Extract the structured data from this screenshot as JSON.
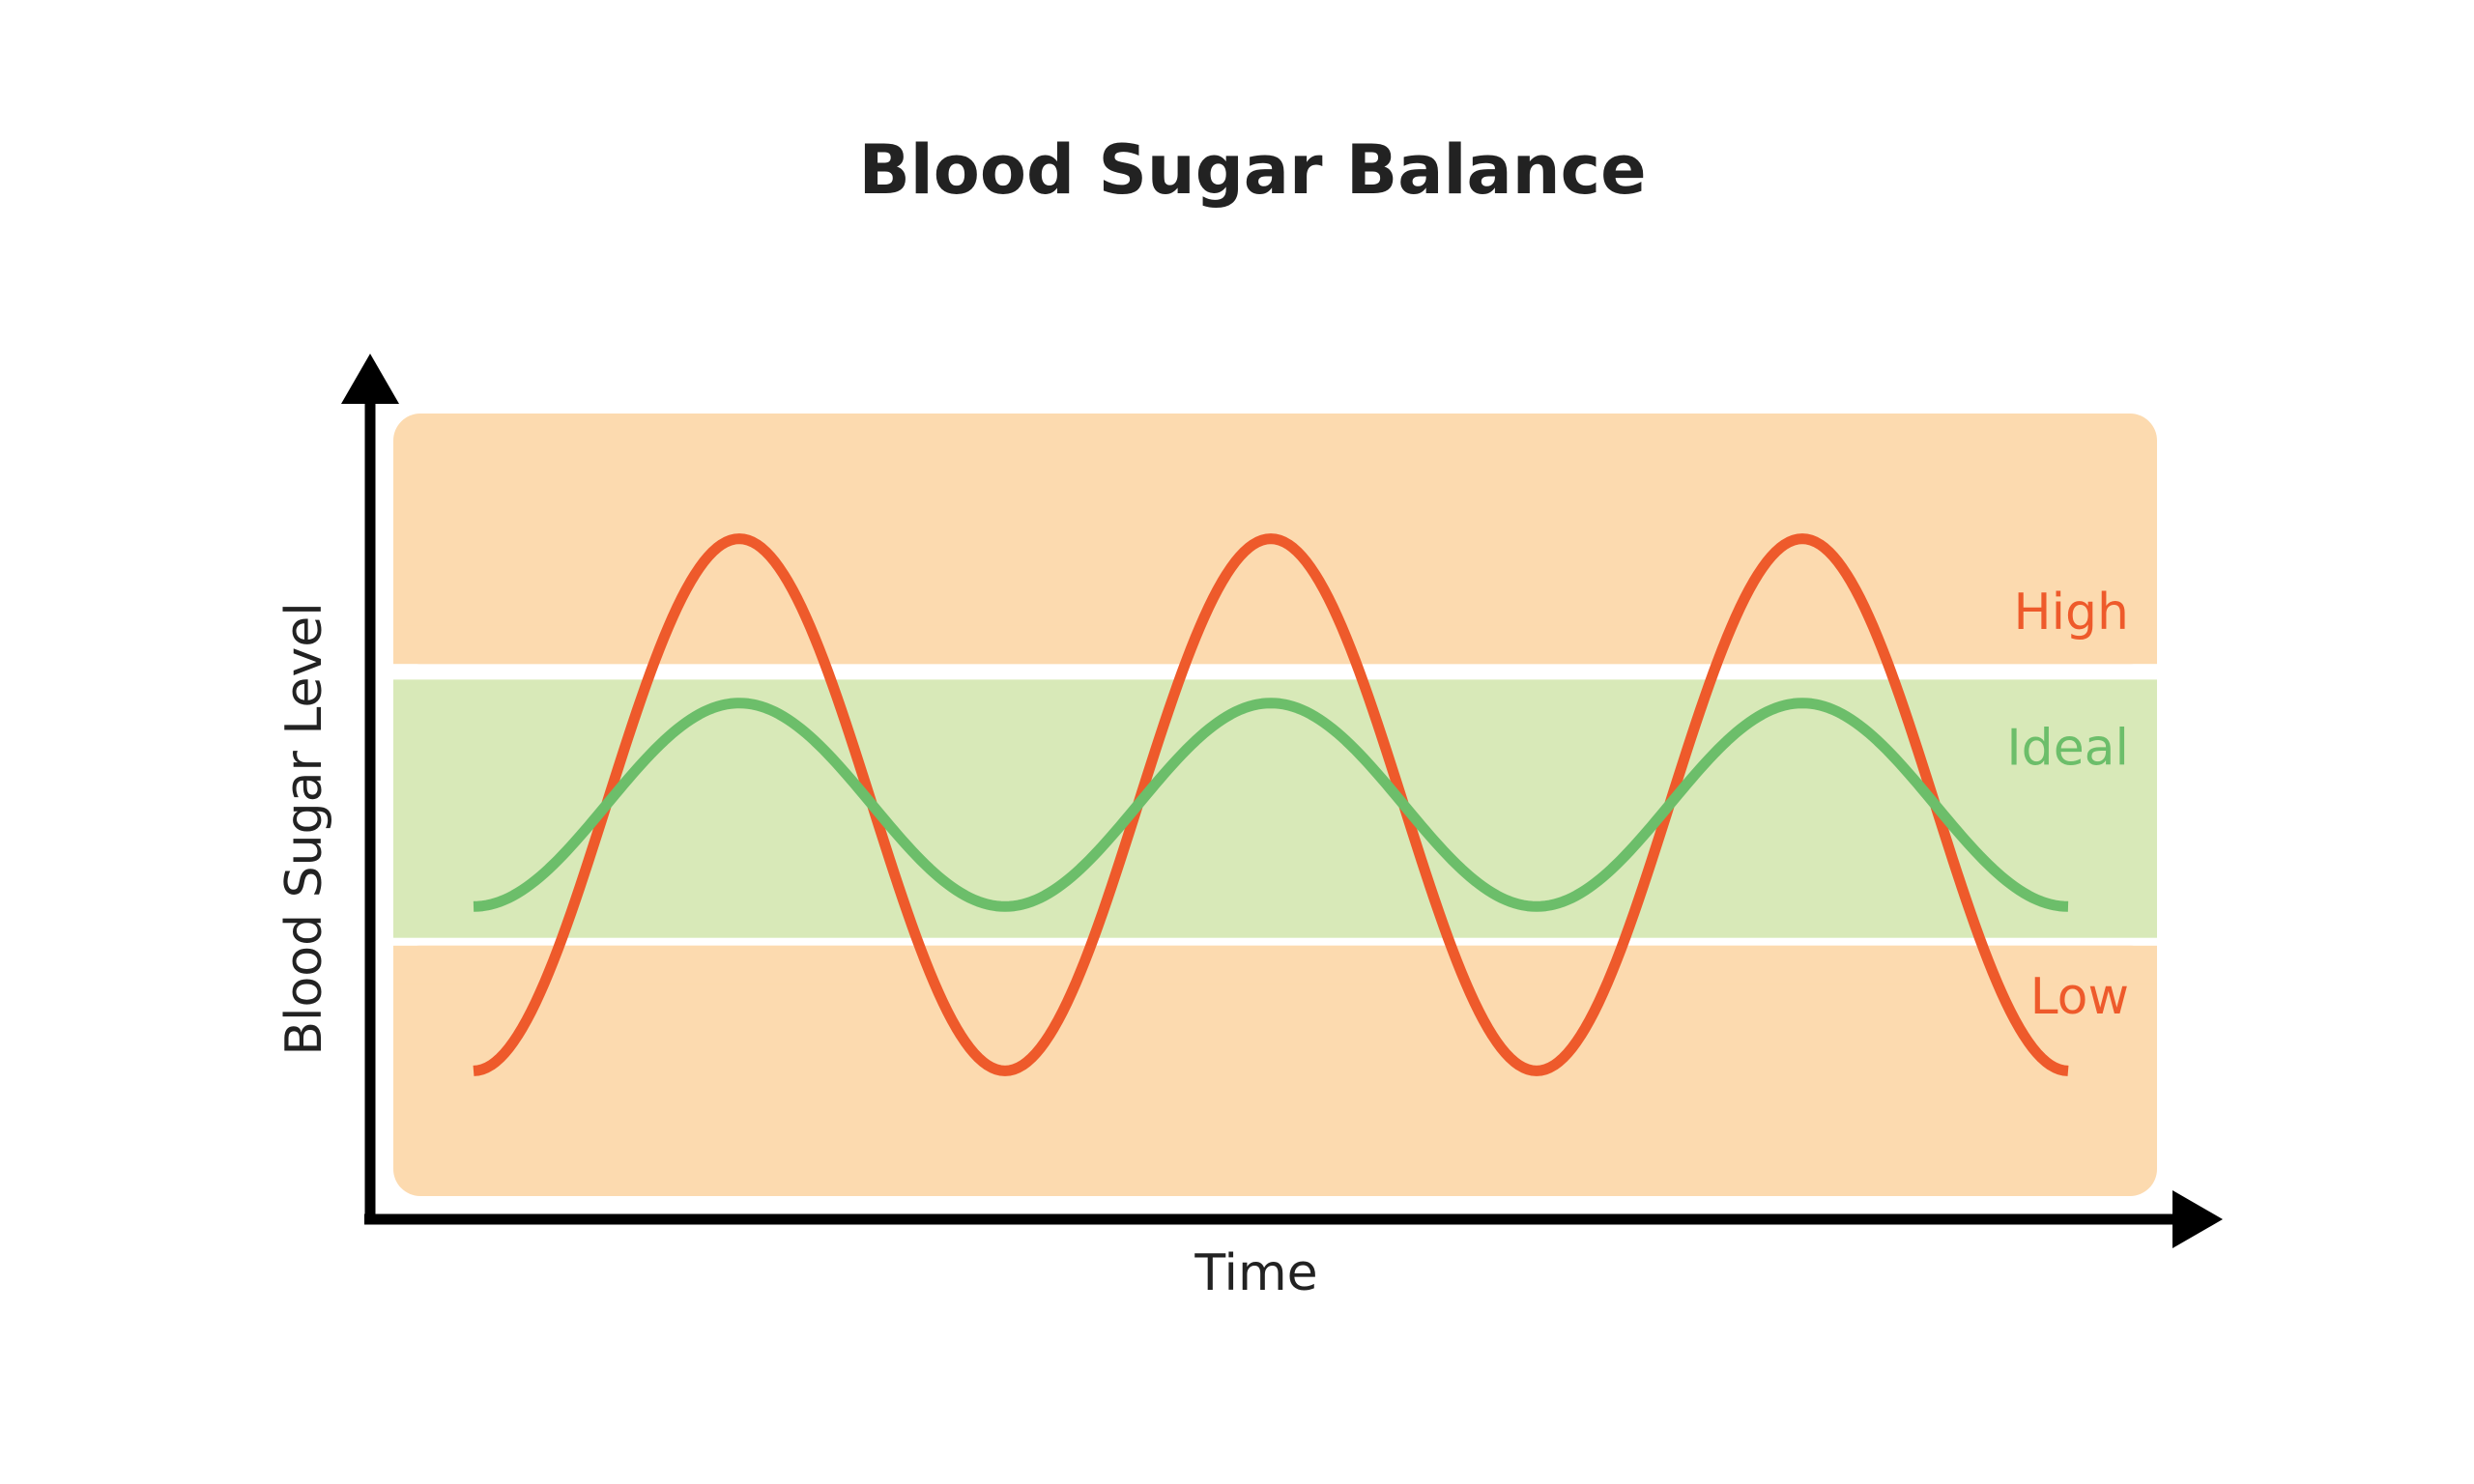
{
  "chart_data": {
    "type": "line",
    "title": "Blood Sugar Balance",
    "xlabel": "Time",
    "ylabel": "Blood Sugar Level",
    "zones": [
      {
        "label": "High",
        "range": [
          0.68,
          1.0
        ],
        "fill_color": "#FCDAAF",
        "label_color": "#EE5A2B"
      },
      {
        "label": "Ideal",
        "range": [
          0.33,
          0.66
        ],
        "fill_color": "#D8E9B8",
        "label_color": "#6CBE6A"
      },
      {
        "label": "Low",
        "range": [
          0.0,
          0.32
        ],
        "fill_color": "#FCDAAF",
        "label_color": "#EE5A2B"
      }
    ],
    "series": [
      {
        "color": "#EE5A2B",
        "x": [
          0,
          0.5,
          1,
          1.5,
          2,
          2.5,
          3
        ],
        "values": [
          0.16,
          0.84,
          0.16,
          0.84,
          0.16,
          0.84,
          0.16
        ]
      },
      {
        "color": "#6CBE6A",
        "x": [
          0,
          0.5,
          1,
          1.5,
          2,
          2.5,
          3
        ],
        "values": [
          0.37,
          0.63,
          0.37,
          0.63,
          0.37,
          0.63,
          0.37
        ]
      }
    ],
    "xlim": [
      0,
      3
    ],
    "ylim": [
      0,
      1
    ],
    "grid": false
  }
}
